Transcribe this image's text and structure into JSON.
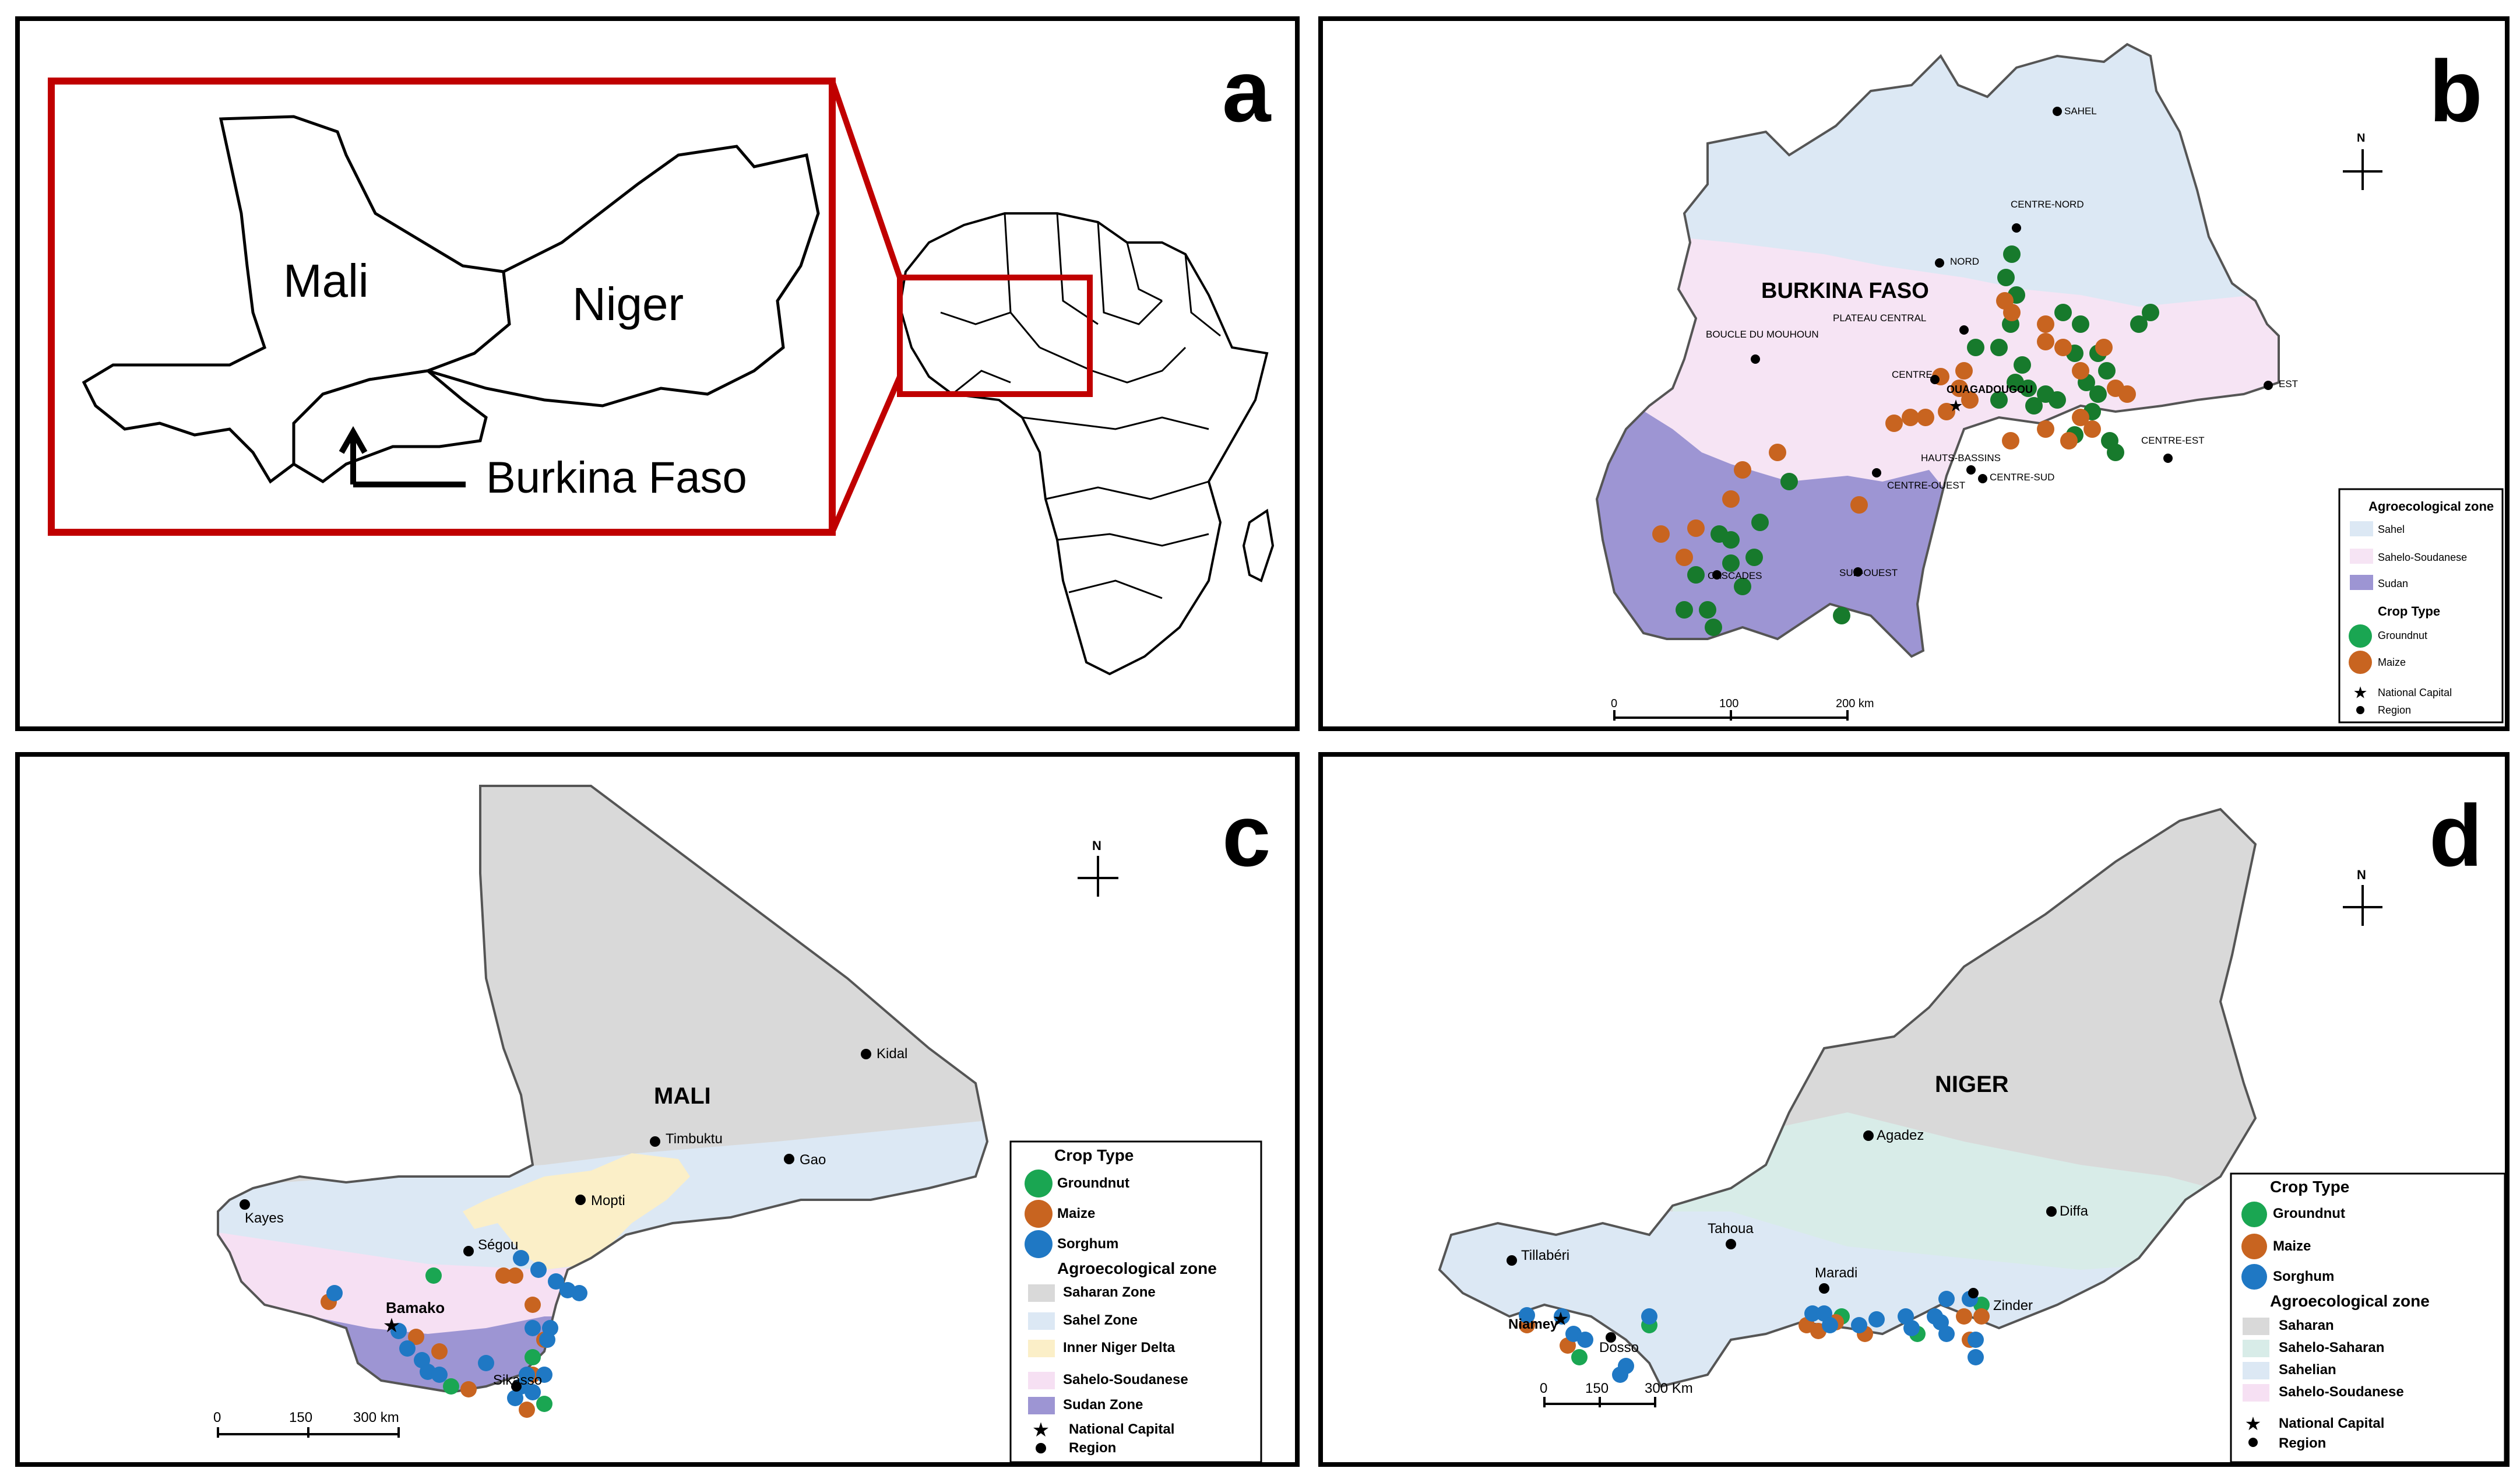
{
  "panel_a": {
    "letter": "a",
    "labels": {
      "mali": "Mali",
      "niger": "Niger",
      "burkina": "Burkina Faso"
    }
  },
  "panel_b": {
    "letter": "b",
    "country": "BURKINA FASO",
    "capital": "OUAGADOUGOU",
    "compass": "N",
    "regions": [
      "SAHEL",
      "CENTRE-NORD",
      "NORD",
      "PLATEAU CENTRAL",
      "BOUCLE DU MOUHOUN",
      "CENTRE",
      "EST",
      "HAUTS-BASSINS",
      "CENTRE-OUEST",
      "CENTRE-SUD",
      "CENTRE-EST",
      "CASCADES",
      "SUD-OUEST"
    ],
    "scale": [
      "0",
      "100",
      "200 km"
    ],
    "legend": {
      "zone_title": "Agroecological zone",
      "zones": [
        {
          "label": "Sahel",
          "color": "#dce8f4"
        },
        {
          "label": "Sahelo-Soudanese",
          "color": "#f6e4f4"
        },
        {
          "label": "Sudan",
          "color": "#9d95d3"
        }
      ],
      "crop_title": "Crop Type",
      "crops": [
        {
          "label": "Groundnut",
          "color": "#1aa652"
        },
        {
          "label": "Maize",
          "color": "#c86420"
        }
      ],
      "capital_label": "National Capital",
      "region_label": "Region"
    }
  },
  "panel_c": {
    "letter": "c",
    "country": "MALI",
    "compass": "N",
    "capital": "Bamako",
    "regions": [
      "Kidal",
      "Timbuktu",
      "Gao",
      "Mopti",
      "Kayes",
      "Ségou",
      "Sikasso"
    ],
    "scale": [
      "0",
      "150",
      "300 km"
    ],
    "legend": {
      "crop_title": "Crop Type",
      "crops": [
        {
          "label": "Groundnut",
          "color": "#1aa652"
        },
        {
          "label": "Maize",
          "color": "#c86420"
        },
        {
          "label": "Sorghum",
          "color": "#1f78c4"
        }
      ],
      "zone_title": "Agroecological zone",
      "zones": [
        {
          "label": "Saharan Zone",
          "color": "#d9d9d9"
        },
        {
          "label": "Sahel Zone",
          "color": "#dce8f4"
        },
        {
          "label": "Inner Niger Delta",
          "color": "#fbefc8"
        },
        {
          "label": "Sahelo-Soudanese",
          "color": "#f6e0f3"
        },
        {
          "label": "Sudan Zone",
          "color": "#9d95d3"
        }
      ],
      "capital_label": "National Capital",
      "region_label": "Region"
    }
  },
  "panel_d": {
    "letter": "d",
    "country": "NIGER",
    "compass": "N",
    "capital": "Niamey",
    "regions": [
      "Agadez",
      "Diffa",
      "Tahoua",
      "Maradi",
      "Zinder",
      "Tillabéri",
      "Dosso"
    ],
    "scale": [
      "0",
      "150",
      "300 Km"
    ],
    "legend": {
      "crop_title": "Crop Type",
      "crops": [
        {
          "label": "Groundnut",
          "color": "#1aa652"
        },
        {
          "label": "Maize",
          "color": "#c86420"
        },
        {
          "label": "Sorghum",
          "color": "#1f78c4"
        }
      ],
      "zone_title": "Agroecological zone",
      "zones": [
        {
          "label": "Saharan",
          "color": "#d9d9d9"
        },
        {
          "label": "Sahelo-Saharan",
          "color": "#d8ece8"
        },
        {
          "label": "Sahelian",
          "color": "#dce8f4"
        },
        {
          "label": "Sahelo-Soudanese",
          "color": "#f6e0f3"
        }
      ],
      "capital_label": "National Capital",
      "region_label": "Region"
    }
  }
}
